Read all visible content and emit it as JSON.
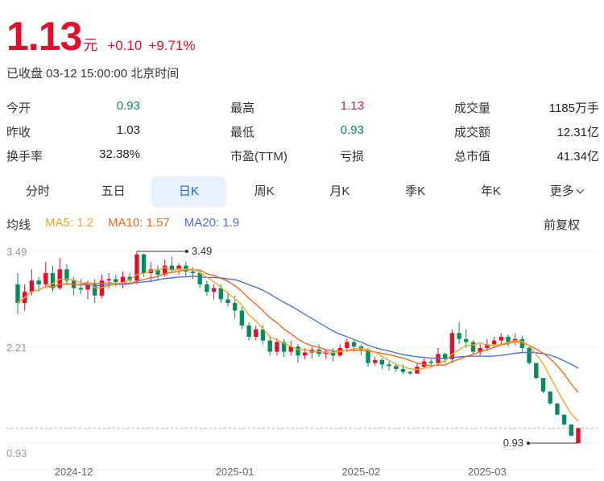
{
  "quote": {
    "price": "1.13",
    "unit": "元",
    "change": "+0.10",
    "change_pct": "+9.71%",
    "status": "已收盘 03-12 15:00:00 北京时间",
    "up_color": "#e0102b",
    "down_color": "#0a8a5a"
  },
  "stats": {
    "open": {
      "label": "今开",
      "value": "0.93"
    },
    "high": {
      "label": "最高",
      "value": "1.13"
    },
    "volume": {
      "label": "成交量",
      "value": "1185万手"
    },
    "prev_close": {
      "label": "昨收",
      "value": "1.03"
    },
    "low": {
      "label": "最低",
      "value": "0.93"
    },
    "turnover": {
      "label": "成交额",
      "value": "12.31亿"
    },
    "turnover_rate": {
      "label": "换手率",
      "value": "32.38%"
    },
    "pe": {
      "label": "市盈(TTM)",
      "value": "亏损"
    },
    "market_cap": {
      "label": "总市值",
      "value": "41.34亿"
    }
  },
  "tabs": [
    "分时",
    "五日",
    "日K",
    "周K",
    "月K",
    "季K",
    "年K",
    "更多"
  ],
  "active_tab": "日K",
  "ma": {
    "label": "均线",
    "ma5": "MA5: 1.2",
    "ma10": "MA10: 1.57",
    "ma20": "MA20: 1.9",
    "adjust": "前复权",
    "ma5_color": "#f3a62b",
    "ma10_color": "#f06a1e",
    "ma20_color": "#4c6fe0"
  },
  "chart_data": {
    "type": "candlestick",
    "y_ticks": [
      "3.49",
      "2.21",
      "0.93"
    ],
    "x_ticks": [
      "2024-12",
      "2025-01",
      "2025-02",
      "2025-03"
    ],
    "ylim": [
      0.93,
      3.49
    ],
    "max_marker": "3.49",
    "min_marker": "0.93",
    "last_close_ref": 1.13,
    "candles": [
      [
        3.05,
        2.8,
        3.2,
        2.65
      ],
      [
        2.8,
        2.95,
        3.05,
        2.7
      ],
      [
        2.95,
        3.1,
        3.25,
        2.9
      ],
      [
        3.1,
        3.05,
        3.15,
        2.95
      ],
      [
        3.05,
        3.2,
        3.35,
        3.0
      ],
      [
        3.2,
        3.0,
        3.3,
        2.95
      ],
      [
        3.0,
        3.25,
        3.4,
        2.98
      ],
      [
        3.25,
        3.1,
        3.32,
        3.05
      ],
      [
        3.1,
        3.0,
        3.15,
        2.9
      ],
      [
        3.0,
        2.98,
        3.12,
        2.92
      ],
      [
        2.98,
        3.05,
        3.1,
        2.85
      ],
      [
        3.05,
        2.9,
        3.12,
        2.8
      ],
      [
        2.9,
        3.1,
        3.18,
        2.86
      ],
      [
        3.1,
        3.12,
        3.2,
        3.0
      ],
      [
        3.12,
        3.08,
        3.18,
        3.02
      ],
      [
        3.08,
        3.15,
        3.22,
        3.0
      ],
      [
        3.15,
        3.1,
        3.2,
        3.05
      ],
      [
        3.1,
        3.45,
        3.49,
        3.05
      ],
      [
        3.45,
        3.2,
        3.46,
        3.15
      ],
      [
        3.2,
        3.25,
        3.35,
        3.1
      ],
      [
        3.25,
        3.18,
        3.3,
        3.1
      ],
      [
        3.18,
        3.3,
        3.38,
        3.15
      ],
      [
        3.3,
        3.25,
        3.42,
        3.2
      ],
      [
        3.25,
        3.3,
        3.33,
        3.18
      ],
      [
        3.3,
        3.22,
        3.35,
        3.15
      ],
      [
        3.22,
        3.2,
        3.28,
        3.12
      ],
      [
        3.2,
        3.05,
        3.25,
        3.0
      ],
      [
        3.05,
        2.95,
        3.1,
        2.9
      ],
      [
        2.95,
        3.0,
        3.05,
        2.85
      ],
      [
        3.0,
        2.85,
        3.05,
        2.8
      ],
      [
        2.85,
        2.8,
        2.95,
        2.75
      ],
      [
        2.8,
        2.7,
        2.9,
        2.6
      ],
      [
        2.7,
        2.5,
        2.75,
        2.45
      ],
      [
        2.5,
        2.35,
        2.55,
        2.3
      ],
      [
        2.35,
        2.45,
        2.5,
        2.3
      ],
      [
        2.45,
        2.3,
        2.5,
        2.25
      ],
      [
        2.3,
        2.15,
        2.35,
        2.1
      ],
      [
        2.15,
        2.28,
        2.33,
        2.1
      ],
      [
        2.28,
        2.15,
        2.32,
        2.08
      ],
      [
        2.15,
        2.22,
        2.3,
        2.1
      ],
      [
        2.22,
        2.1,
        2.25,
        2.0
      ],
      [
        2.1,
        2.14,
        2.2,
        2.05
      ],
      [
        2.14,
        2.18,
        2.22,
        2.06
      ],
      [
        2.18,
        2.12,
        2.25,
        2.08
      ],
      [
        2.12,
        2.15,
        2.18,
        2.05
      ],
      [
        2.15,
        2.1,
        2.2,
        2.02
      ],
      [
        2.1,
        2.2,
        2.25,
        2.08
      ],
      [
        2.2,
        2.28,
        2.32,
        2.15
      ],
      [
        2.28,
        2.22,
        2.3,
        2.15
      ],
      [
        2.22,
        2.18,
        2.25,
        2.1
      ],
      [
        2.18,
        2.0,
        2.2,
        1.95
      ],
      [
        2.0,
        2.04,
        2.08,
        1.96
      ],
      [
        2.04,
        1.98,
        2.06,
        1.92
      ],
      [
        1.98,
        1.96,
        2.02,
        1.9
      ],
      [
        1.96,
        1.92,
        2.0,
        1.88
      ],
      [
        1.92,
        1.88,
        1.98,
        1.85
      ],
      [
        1.88,
        1.86,
        1.9,
        1.84
      ],
      [
        1.86,
        1.95,
        2.0,
        1.85
      ],
      [
        1.95,
        2.02,
        2.06,
        1.92
      ],
      [
        2.02,
        2.0,
        2.05,
        1.95
      ],
      [
        2.0,
        2.12,
        2.2,
        1.96
      ],
      [
        2.12,
        2.05,
        2.14,
        2.0
      ],
      [
        2.05,
        2.4,
        2.45,
        2.0
      ],
      [
        2.4,
        2.32,
        2.55,
        2.25
      ],
      [
        2.32,
        2.28,
        2.45,
        2.2
      ],
      [
        2.28,
        2.15,
        2.3,
        2.12
      ],
      [
        2.15,
        2.2,
        2.25,
        2.1
      ],
      [
        2.2,
        2.25,
        2.32,
        2.16
      ],
      [
        2.25,
        2.3,
        2.35,
        2.2
      ],
      [
        2.3,
        2.35,
        2.4,
        2.25
      ],
      [
        2.35,
        2.28,
        2.38,
        2.22
      ],
      [
        2.28,
        2.32,
        2.4,
        2.24
      ],
      [
        2.32,
        2.2,
        2.36,
        2.15
      ],
      [
        2.2,
        2.0,
        2.22,
        1.98
      ],
      [
        2.0,
        1.8,
        2.0,
        1.78
      ],
      [
        1.8,
        1.62,
        1.8,
        1.6
      ],
      [
        1.62,
        1.46,
        1.62,
        1.44
      ],
      [
        1.46,
        1.31,
        1.46,
        1.3
      ],
      [
        1.31,
        1.18,
        1.31,
        1.17
      ],
      [
        1.18,
        1.03,
        1.18,
        1.02
      ],
      [
        0.93,
        1.13,
        1.13,
        0.93
      ]
    ]
  }
}
